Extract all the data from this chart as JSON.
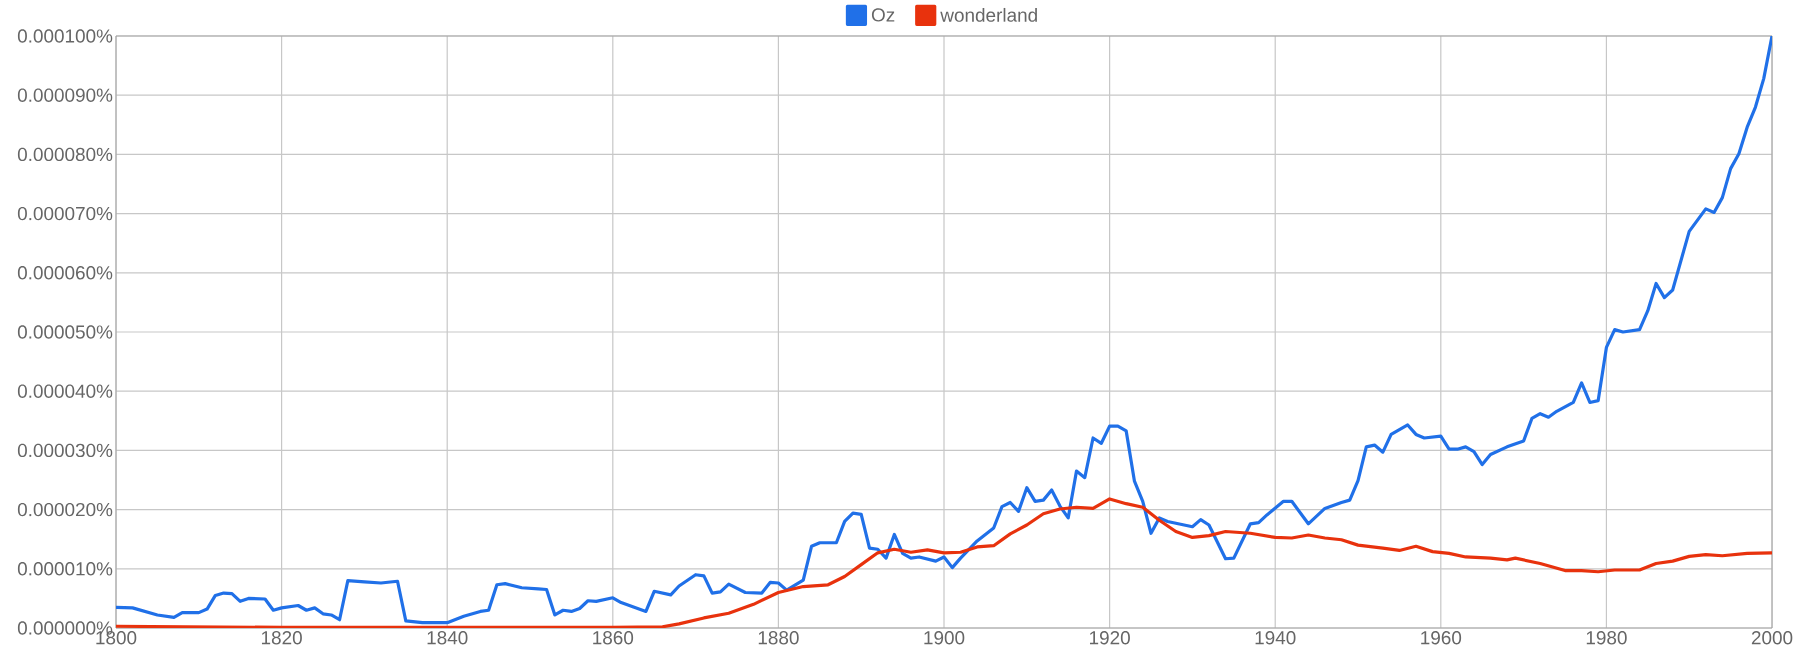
{
  "chart_data": {
    "type": "line",
    "xlim": [
      1800,
      2000
    ],
    "xticks": [
      1800,
      1820,
      1840,
      1860,
      1880,
      1900,
      1920,
      1940,
      1960,
      1980,
      2000
    ],
    "ylim": [
      0,
      0.0001
    ],
    "yticks": [
      {
        "value": 0,
        "label": "0.000000%"
      },
      {
        "value": 1e-05,
        "label": "0.000010%"
      },
      {
        "value": 2e-05,
        "label": "0.000020%"
      },
      {
        "value": 3e-05,
        "label": "0.000030%"
      },
      {
        "value": 4e-05,
        "label": "0.000040%"
      },
      {
        "value": 5e-05,
        "label": "0.000050%"
      },
      {
        "value": 6e-05,
        "label": "0.000060%"
      },
      {
        "value": 7e-05,
        "label": "0.000070%"
      },
      {
        "value": 8e-05,
        "label": "0.000080%"
      },
      {
        "value": 9e-05,
        "label": "0.000090%"
      },
      {
        "value": 0.0001,
        "label": "0.000100%"
      }
    ],
    "grid": true,
    "legend": "top",
    "marker": "none",
    "line_style": "solid",
    "series": [
      {
        "name": "Oz",
        "color": "#2070e8",
        "x": [
          1800,
          1802,
          1805,
          1807,
          1808,
          1810,
          1811,
          1812,
          1813,
          1814,
          1815,
          1816,
          1818,
          1819,
          1820,
          1822,
          1823,
          1824,
          1825,
          1826,
          1827,
          1828,
          1830,
          1832,
          1834,
          1835,
          1837,
          1840,
          1842,
          1844,
          1845,
          1846,
          1847,
          1849,
          1851,
          1852,
          1853,
          1854,
          1855,
          1856,
          1857,
          1858,
          1860,
          1861,
          1864,
          1865,
          1867,
          1868,
          1870,
          1871,
          1872,
          1873,
          1874,
          1876,
          1878,
          1879,
          1880,
          1881,
          1883,
          1884,
          1885,
          1887,
          1888,
          1889,
          1890,
          1891,
          1892,
          1893,
          1894,
          1895,
          1896,
          1897,
          1899,
          1900,
          1901,
          1902,
          1904,
          1905,
          1906,
          1907,
          1908,
          1909,
          1910,
          1911,
          1912,
          1913,
          1914,
          1915,
          1916,
          1917,
          1918,
          1919,
          1920,
          1921,
          1922,
          1923,
          1924,
          1925,
          1926,
          1927,
          1928,
          1930,
          1931,
          1932,
          1934,
          1935,
          1937,
          1938,
          1939,
          1941,
          1942,
          1944,
          1946,
          1948,
          1949,
          1950,
          1951,
          1952,
          1953,
          1954,
          1956,
          1957,
          1958,
          1960,
          1961,
          1962,
          1963,
          1964,
          1965,
          1966,
          1968,
          1970,
          1971,
          1972,
          1973,
          1974,
          1976,
          1977,
          1978,
          1979,
          1980,
          1981,
          1982,
          1984,
          1985,
          1986,
          1987,
          1988,
          1990,
          1992,
          1993,
          1994,
          1995,
          1996,
          1997,
          1998,
          1999,
          2000
        ],
        "values": [
          3.5e-06,
          3.4e-06,
          2.2e-06,
          1.8e-06,
          2.6e-06,
          2.6e-06,
          3.2e-06,
          5.5e-06,
          5.9e-06,
          5.8e-06,
          4.5e-06,
          5e-06,
          4.9e-06,
          3e-06,
          3.4e-06,
          3.8e-06,
          3e-06,
          3.4e-06,
          2.4e-06,
          2.2e-06,
          1.4e-06,
          8e-06,
          7.8e-06,
          7.6e-06,
          7.9e-06,
          1.2e-06,
          9e-07,
          9e-07,
          2e-06,
          2.8e-06,
          3e-06,
          7.3e-06,
          7.5e-06,
          6.8e-06,
          6.6e-06,
          6.5e-06,
          2.2e-06,
          3e-06,
          2.8e-06,
          3.3e-06,
          4.6e-06,
          4.5e-06,
          5.1e-06,
          4.3e-06,
          2.8e-06,
          6.2e-06,
          5.6e-06,
          7.1e-06,
          9e-06,
          8.8e-06,
          5.9e-06,
          6.1e-06,
          7.4e-06,
          6e-06,
          5.9e-06,
          7.7e-06,
          7.6e-06,
          6.4e-06,
          8.1e-06,
          1.38e-05,
          1.44e-05,
          1.44e-05,
          1.8e-05,
          1.94e-05,
          1.92e-05,
          1.35e-05,
          1.33e-05,
          1.18e-05,
          1.58e-05,
          1.26e-05,
          1.18e-05,
          1.2e-05,
          1.13e-05,
          1.2e-05,
          1.02e-05,
          1.18e-05,
          1.47e-05,
          1.58e-05,
          1.69e-05,
          2.05e-05,
          2.12e-05,
          1.97e-05,
          2.37e-05,
          2.14e-05,
          2.16e-05,
          2.33e-05,
          2.06e-05,
          1.86e-05,
          2.65e-05,
          2.54e-05,
          3.21e-05,
          3.12e-05,
          3.41e-05,
          3.41e-05,
          3.33e-05,
          2.48e-05,
          2.14e-05,
          1.6e-05,
          1.86e-05,
          1.8e-05,
          1.77e-05,
          1.71e-05,
          1.83e-05,
          1.74e-05,
          1.17e-05,
          1.18e-05,
          1.76e-05,
          1.78e-05,
          1.91e-05,
          2.14e-05,
          2.14e-05,
          1.76e-05,
          2.02e-05,
          2.12e-05,
          2.16e-05,
          2.49e-05,
          3.06e-05,
          3.09e-05,
          2.97e-05,
          3.27e-05,
          3.43e-05,
          3.27e-05,
          3.21e-05,
          3.24e-05,
          3.02e-05,
          3.02e-05,
          3.06e-05,
          2.98e-05,
          2.76e-05,
          2.93e-05,
          3.06e-05,
          3.16e-05,
          3.54e-05,
          3.62e-05,
          3.56e-05,
          3.66e-05,
          3.81e-05,
          4.14e-05,
          3.81e-05,
          3.84e-05,
          4.74e-05,
          5.04e-05,
          5e-05,
          5.04e-05,
          5.36e-05,
          5.82e-05,
          5.58e-05,
          5.71e-05,
          6.7e-05,
          7.08e-05,
          7.02e-05,
          7.27e-05,
          7.76e-05,
          8.01e-05,
          8.46e-05,
          8.8e-05,
          9.28e-05,
          0.0001
        ]
      },
      {
        "name": "wonderland",
        "color": "#e8320d",
        "x": [
          1800,
          1820,
          1840,
          1860,
          1866,
          1868,
          1871,
          1874,
          1877,
          1880,
          1883,
          1886,
          1888,
          1890,
          1892,
          1894,
          1896,
          1898,
          1900,
          1902,
          1904,
          1906,
          1908,
          1910,
          1912,
          1914,
          1916,
          1918,
          1920,
          1922,
          1924,
          1926,
          1928,
          1930,
          1932,
          1934,
          1937,
          1940,
          1942,
          1944,
          1946,
          1948,
          1950,
          1953,
          1955,
          1957,
          1959,
          1961,
          1963,
          1966,
          1968,
          1969,
          1972,
          1975,
          1977,
          1979,
          1981,
          1984,
          1986,
          1988,
          1990,
          1992,
          1994,
          1997,
          2000
        ],
        "values": [
          3e-07,
          1e-07,
          1e-07,
          1e-07,
          2e-07,
          7e-07,
          1.7e-06,
          2.5e-06,
          4e-06,
          6e-06,
          7e-06,
          7.3e-06,
          8.7e-06,
          1.07e-05,
          1.27e-05,
          1.33e-05,
          1.28e-05,
          1.32e-05,
          1.27e-05,
          1.28e-05,
          1.37e-05,
          1.39e-05,
          1.59e-05,
          1.74e-05,
          1.93e-05,
          2.01e-05,
          2.04e-05,
          2.02e-05,
          2.18e-05,
          2.1e-05,
          2.04e-05,
          1.82e-05,
          1.63e-05,
          1.53e-05,
          1.56e-05,
          1.63e-05,
          1.6e-05,
          1.53e-05,
          1.52e-05,
          1.57e-05,
          1.52e-05,
          1.49e-05,
          1.4e-05,
          1.35e-05,
          1.31e-05,
          1.38e-05,
          1.29e-05,
          1.26e-05,
          1.2e-05,
          1.18e-05,
          1.15e-05,
          1.18e-05,
          1.09e-05,
          9.7e-06,
          9.7e-06,
          9.5e-06,
          9.8e-06,
          9.8e-06,
          1.09e-05,
          1.13e-05,
          1.21e-05,
          1.24e-05,
          1.22e-05,
          1.26e-05,
          1.27e-05
        ]
      }
    ]
  }
}
